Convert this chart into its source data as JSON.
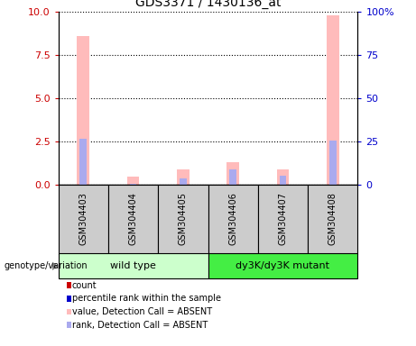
{
  "title": "GDS3371 / 1430136_at",
  "samples": [
    "GSM304403",
    "GSM304404",
    "GSM304405",
    "GSM304406",
    "GSM304407",
    "GSM304408"
  ],
  "pink_bars": [
    8.6,
    0.5,
    0.9,
    1.3,
    0.9,
    9.8
  ],
  "blue_bars": [
    27,
    1,
    4,
    9,
    5.5,
    26
  ],
  "ylim": [
    0,
    10
  ],
  "y2lim": [
    0,
    100
  ],
  "yticks": [
    0,
    2.5,
    5,
    7.5,
    10
  ],
  "y2ticks": [
    0,
    25,
    50,
    75,
    100
  ],
  "y2labels": [
    "0",
    "25",
    "50",
    "75",
    "100%"
  ],
  "left_color": "#cc0000",
  "right_color": "#0000cc",
  "pink_color": "#ffbbbb",
  "blue_color": "#aaaaee",
  "sample_box_color": "#cccccc",
  "wt_color": "#ccffcc",
  "mut_color": "#44ee44",
  "legend_items": [
    {
      "color": "#cc0000",
      "label": "count"
    },
    {
      "color": "#0000cc",
      "label": "percentile rank within the sample"
    },
    {
      "color": "#ffbbbb",
      "label": "value, Detection Call = ABSENT"
    },
    {
      "color": "#aaaaee",
      "label": "rank, Detection Call = ABSENT"
    }
  ],
  "genotype_label": "genotype/variation",
  "bar_width": 0.25
}
